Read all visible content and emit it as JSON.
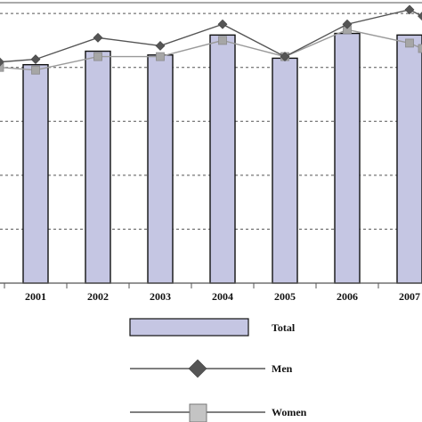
{
  "chart_data": {
    "type": "bar",
    "categories": [
      "2001",
      "2002",
      "2003",
      "2004",
      "2005",
      "2006",
      "2007"
    ],
    "ylim": [
      0,
      5.2
    ],
    "grid": true,
    "legend_position": "bottom",
    "series": [
      {
        "name": "Total",
        "kind": "bar",
        "color": "#c5c6e3",
        "values": [
          4.05,
          4.3,
          4.23,
          4.6,
          4.17,
          4.63,
          4.6
        ]
      },
      {
        "name": "Men",
        "kind": "line",
        "marker": "diamond",
        "color": "#555555",
        "values": [
          4.15,
          4.55,
          4.4,
          4.8,
          4.2,
          4.8,
          5.07
        ]
      },
      {
        "name": "Women",
        "kind": "line",
        "marker": "square",
        "color": "#9a9a9a",
        "values": [
          3.95,
          4.2,
          4.2,
          4.5,
          4.2,
          4.7,
          4.45
        ]
      }
    ],
    "boundary": {
      "note": "partial line points beyond the visible categories",
      "men_left": 4.1,
      "women_left": 4.0,
      "men_right": 4.95,
      "women_right": 4.35
    }
  }
}
